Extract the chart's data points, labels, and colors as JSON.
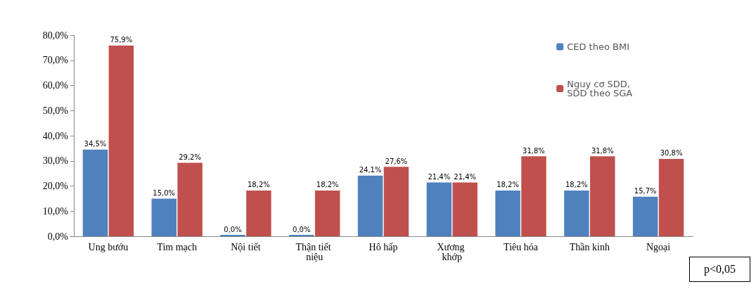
{
  "chart_data": {
    "type": "bar",
    "categories": [
      "Ung bướu",
      "Tim mạch",
      "Nội tiết",
      "Thận tiết niệu",
      "Hô hấp",
      "Xương khớp",
      "Tiêu hóa",
      "Thần kinh",
      "Ngoại"
    ],
    "series": [
      {
        "name": "CED theo BMI",
        "color": "#4f81bd",
        "values": [
          34.5,
          15.0,
          0.0,
          0.0,
          24.1,
          21.4,
          18.2,
          18.2,
          15.7
        ],
        "value_labels": [
          "34,5%",
          "15,0%",
          "0,0%",
          "0,0%",
          "24,1%",
          "21,4%",
          "18,2%",
          "18,2%",
          "15,7%"
        ]
      },
      {
        "name": "Nguy cơ SDD, SDD theo SGA",
        "color": "#c0504d",
        "values": [
          75.9,
          29.2,
          18.2,
          18.2,
          27.6,
          21.4,
          31.8,
          31.8,
          30.8
        ],
        "value_labels": [
          "75,9%",
          "29,2%",
          "18,2%",
          "18,2%",
          "27,6%",
          "21,4%",
          "31,8%",
          "31,8%",
          "30,8%"
        ]
      }
    ],
    "ylim": [
      0,
      80
    ],
    "yticks": [
      {
        "value": 0,
        "label": "0,0%"
      },
      {
        "value": 10,
        "label": "10,0%"
      },
      {
        "value": 20,
        "label": "20,0%"
      },
      {
        "value": 30,
        "label": "30,0%"
      },
      {
        "value": 40,
        "label": "40,0%"
      },
      {
        "value": 50,
        "label": "50,0%"
      },
      {
        "value": 60,
        "label": "60,0%"
      },
      {
        "value": 70,
        "label": "70,0%"
      },
      {
        "value": 80,
        "label": "80,0%"
      }
    ],
    "grid": false,
    "legend": "top right",
    "annotations": [
      "p<0,05"
    ]
  }
}
